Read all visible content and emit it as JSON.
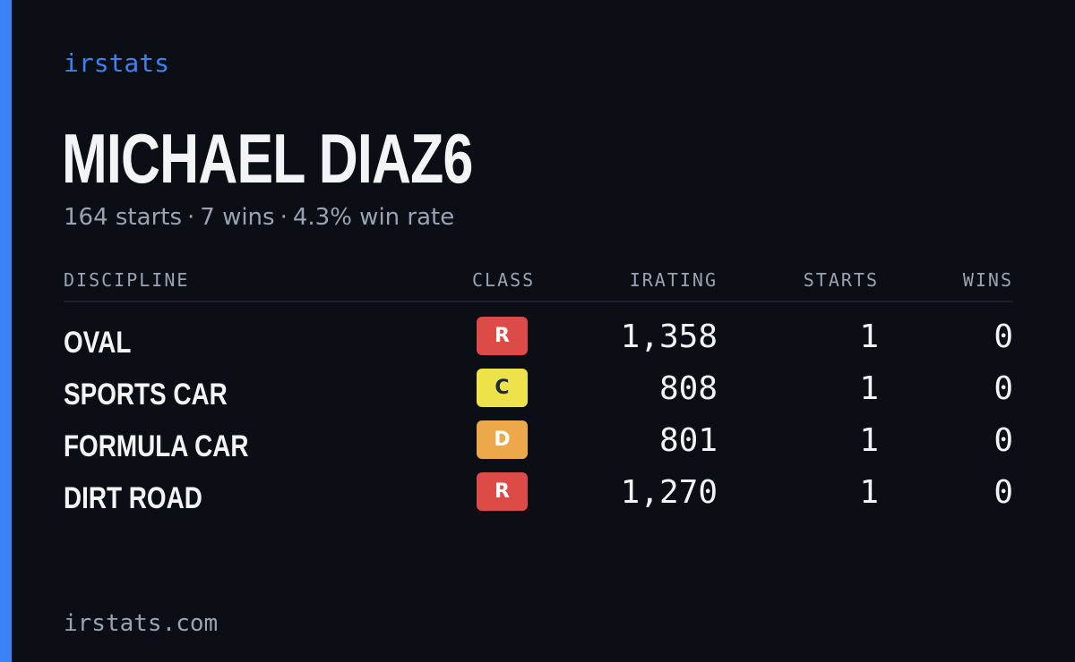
{
  "brand": "irstats",
  "driver": {
    "name": "MICHAEL DIAZ6",
    "starts_text": "164 starts",
    "wins_text": "7 wins",
    "win_rate_text": "4.3% win rate",
    "separator": "·"
  },
  "table": {
    "headers": {
      "discipline": "DISCIPLINE",
      "class": "CLASS",
      "irating": "IRATING",
      "starts": "STARTS",
      "wins": "WINS"
    },
    "rows": [
      {
        "discipline": "OVAL",
        "class": "R",
        "class_color": "#dc4b45",
        "class_text_color": "#ffffff",
        "irating": "1,358",
        "starts": "1",
        "wins": "0"
      },
      {
        "discipline": "SPORTS CAR",
        "class": "C",
        "class_color": "#ede24a",
        "class_text_color": "#1f2937",
        "irating": "808",
        "starts": "1",
        "wins": "0"
      },
      {
        "discipline": "FORMULA CAR",
        "class": "D",
        "class_color": "#eda84a",
        "class_text_color": "#ffffff",
        "irating": "801",
        "starts": "1",
        "wins": "0"
      },
      {
        "discipline": "DIRT ROAD",
        "class": "R",
        "class_color": "#dc4b45",
        "class_text_color": "#ffffff",
        "irating": "1,270",
        "starts": "1",
        "wins": "0"
      }
    ]
  },
  "footer": "irstats.com",
  "colors": {
    "background": "#0b0e14",
    "accent": "#3b82f6",
    "muted": "#9aa3b2",
    "text": "#f3f4f6"
  }
}
